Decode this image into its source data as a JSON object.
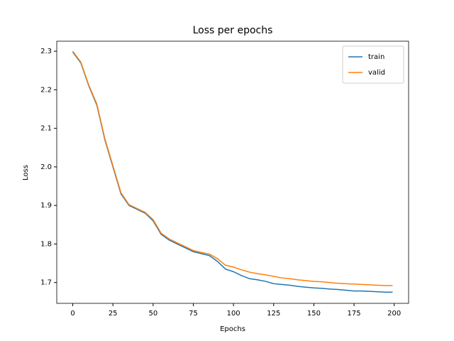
{
  "chart_data": {
    "type": "line",
    "title": "Loss per epochs",
    "x_label": "Epochs",
    "y_label": "Loss",
    "x": [
      0,
      5,
      10,
      15,
      20,
      25,
      30,
      35,
      40,
      45,
      50,
      55,
      60,
      65,
      70,
      75,
      80,
      85,
      90,
      95,
      100,
      105,
      110,
      115,
      120,
      125,
      130,
      135,
      140,
      145,
      150,
      155,
      160,
      165,
      170,
      175,
      180,
      185,
      190,
      195,
      199
    ],
    "series": [
      {
        "name": "train",
        "color": "#1f77b4",
        "values": [
          2.298,
          2.27,
          2.21,
          2.16,
          2.07,
          2.0,
          1.93,
          1.9,
          1.89,
          1.88,
          1.86,
          1.825,
          1.81,
          1.8,
          1.79,
          1.78,
          1.775,
          1.77,
          1.755,
          1.735,
          1.728,
          1.718,
          1.71,
          1.707,
          1.703,
          1.697,
          1.695,
          1.693,
          1.69,
          1.688,
          1.686,
          1.685,
          1.683,
          1.682,
          1.68,
          1.678,
          1.678,
          1.677,
          1.676,
          1.675,
          1.675
        ]
      },
      {
        "name": "valid",
        "color": "#ff7f0e",
        "values": [
          2.3,
          2.272,
          2.212,
          2.163,
          2.073,
          2.003,
          1.933,
          1.902,
          1.892,
          1.882,
          1.863,
          1.828,
          1.813,
          1.803,
          1.793,
          1.783,
          1.778,
          1.774,
          1.762,
          1.745,
          1.74,
          1.733,
          1.727,
          1.723,
          1.72,
          1.716,
          1.712,
          1.71,
          1.707,
          1.705,
          1.703,
          1.702,
          1.7,
          1.698,
          1.697,
          1.696,
          1.695,
          1.694,
          1.693,
          1.692,
          1.692
        ]
      }
    ],
    "xlim": [
      -9.95,
      208.95
    ],
    "ylim": [
      1.646,
      2.326
    ],
    "xticks": [
      0,
      25,
      50,
      75,
      100,
      125,
      150,
      175,
      200
    ],
    "yticks": [
      1.7,
      1.8,
      1.9,
      {
        "value": 2,
        "label": "2.0"
      },
      2.1,
      2.2,
      2.3
    ],
    "grid": false,
    "legend": "upper right"
  }
}
